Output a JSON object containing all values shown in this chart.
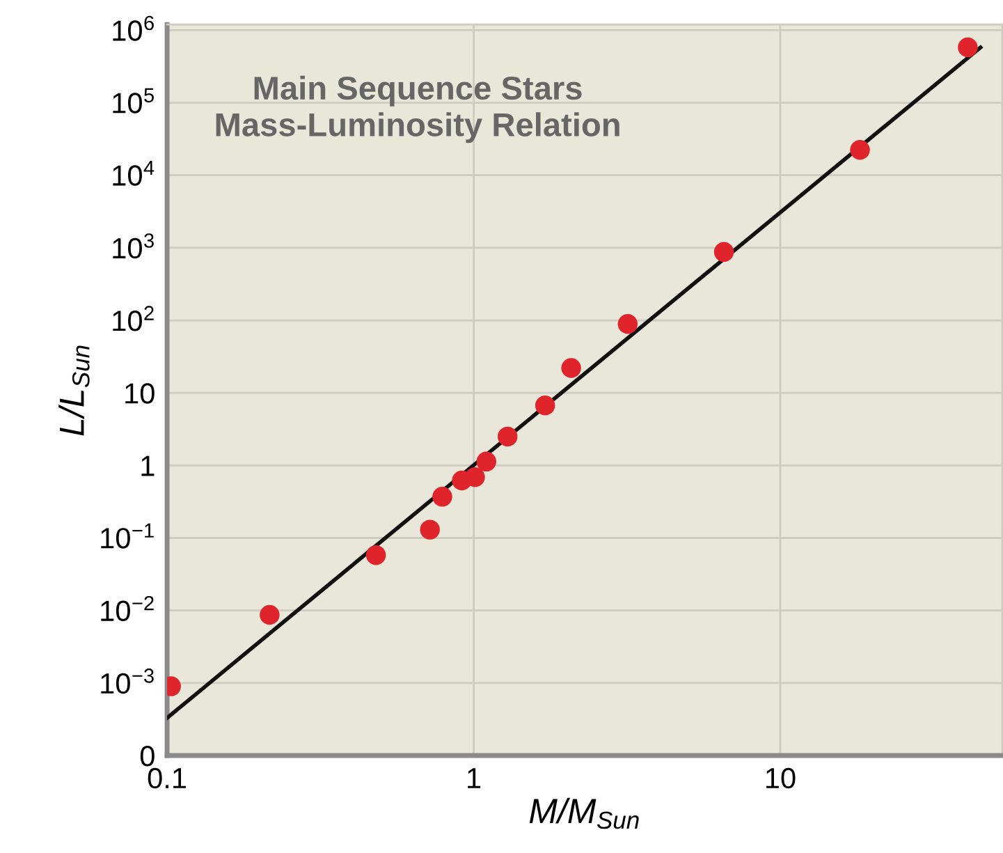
{
  "chart_data": {
    "type": "scatter",
    "title": "Main Sequence Stars\nMass-Luminosity Relation",
    "xlabel": "M/M$_{Sun}$",
    "ylabel": "L/L$_{Sun}$",
    "log": "xy",
    "grid": true,
    "legend": false,
    "marker": "circle",
    "xlim": [
      0.1,
      53
    ],
    "ylim": [
      0.0001,
      1200000
    ],
    "xticks": [
      0.1,
      1,
      10
    ],
    "yticks": [
      {
        "value": 0.0001,
        "label": "0"
      },
      {
        "value": 0.001,
        "label": "10$^{−3}$"
      },
      {
        "value": 0.01,
        "label": "10$^{−2}$"
      },
      {
        "value": 0.1,
        "label": "10$^{−1}$"
      },
      1,
      10,
      {
        "value": 100,
        "label": "10$^{2}$"
      },
      {
        "value": 1000,
        "label": "10$^{3}$"
      },
      {
        "value": 10000,
        "label": "10$^{4}$"
      },
      {
        "value": 100000,
        "label": "10$^{5}$"
      },
      {
        "value": 1000000,
        "label": "10$^{6}$"
      }
    ],
    "series": [
      {
        "type": "line",
        "color": "#111111",
        "marker": "none",
        "line_style": "solid",
        "x": [
          0.1,
          45
        ],
        "values": [
          0.00033,
          580000
        ]
      },
      {
        "color": "#e0242b",
        "x": [
          0.103,
          0.216,
          0.48,
          0.72,
          0.79,
          0.915,
          1.01,
          1.1,
          1.29,
          1.71,
          2.08,
          3.18,
          6.55,
          18.2,
          40.9
        ],
        "values": [
          0.0009,
          0.0087,
          0.058,
          0.13,
          0.37,
          0.62,
          0.69,
          1.13,
          2.5,
          6.7,
          22,
          89,
          877,
          22400,
          580000
        ]
      }
    ]
  }
}
